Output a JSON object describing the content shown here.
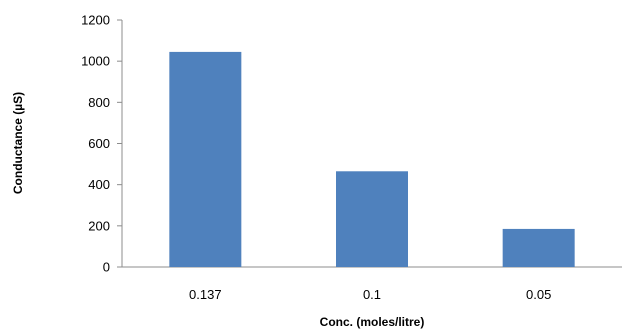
{
  "chart_data": {
    "type": "bar",
    "title": "",
    "xlabel": "Conc. (moles/litre)",
    "ylabel": "Conductance (µS)",
    "categories": [
      "0.137",
      "0.1",
      "0.05"
    ],
    "values": [
      1045,
      465,
      185
    ],
    "ylim": [
      0,
      1200
    ],
    "yticks": [
      0,
      200,
      400,
      600,
      800,
      1000,
      1200
    ],
    "grid": false,
    "legend": "none",
    "bar_color": "#4f81bd"
  }
}
